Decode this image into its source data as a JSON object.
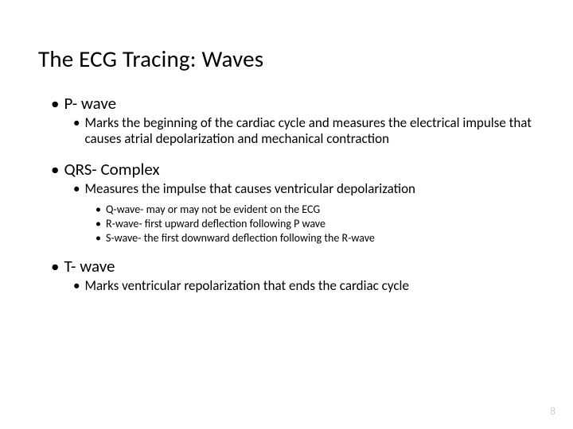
{
  "title": "The ECG Tracing: Waves",
  "page_number": "8",
  "colors": {
    "text": "#000000",
    "background": "#ffffff",
    "pagenum": "#c9c9c9"
  },
  "fontsizes_pt": {
    "title": 29,
    "lvl1": 21,
    "lvl2": 17,
    "lvl3": 14
  },
  "items": {
    "pwave": {
      "label": "P- wave",
      "sub": "Marks the beginning of the cardiac cycle and measures the electrical impulse that causes atrial depolarization and mechanical contraction"
    },
    "qrs": {
      "label": "QRS- Complex",
      "sub": "Measures the impulse that causes ventricular depolarization",
      "q": "Q-wave- may or may not be evident on the ECG",
      "r": "R-wave- first upward deflection following P wave",
      "s": "S-wave- the first downward deflection following the R-wave"
    },
    "twave": {
      "label": "T- wave",
      "sub": "Marks ventricular repolarization that ends the cardiac cycle"
    }
  }
}
